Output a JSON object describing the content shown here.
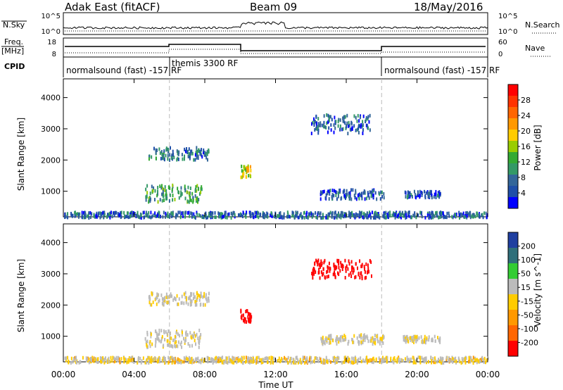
{
  "header": {
    "station": "Adak East (fitACF)",
    "beam": "Beam 09",
    "date": "18/May/2016"
  },
  "time_axis": {
    "ticks": [
      "00:00",
      "04:00",
      "08:00",
      "12:00",
      "16:00",
      "20:00",
      "00:00"
    ],
    "label": "Time UT",
    "range_hours": [
      0,
      24
    ]
  },
  "noise_panel": {
    "left_label": "N.Sky",
    "right_label": "N.Search",
    "left_ticks": [
      "10^5",
      "10^0"
    ],
    "right_ticks": [
      "10^5",
      "10^0"
    ]
  },
  "freq_panel": {
    "left_label_line1": "Freq.",
    "left_label_line2": "[MHz]",
    "right_label": "Nave",
    "left_ticks": [
      "18",
      "8"
    ],
    "right_ticks": [
      "60",
      "0"
    ]
  },
  "cpid_panel": {
    "label": "CPID",
    "segments": [
      {
        "text": "normalsound (fast) -157 RF",
        "start_hour": 0
      },
      {
        "text": "themis 3300 RF",
        "start_hour": 6
      },
      {
        "text": "normalsound (fast) -157 RF",
        "start_hour": 18
      }
    ],
    "mode_change_hours": [
      6,
      18
    ]
  },
  "power_colorbar": {
    "label": "Power [dB]",
    "ticks": [
      "28",
      "24",
      "20",
      "16",
      "12",
      "8",
      "4"
    ],
    "colors": [
      "#ff0000",
      "#ff3300",
      "#ff6600",
      "#ff9900",
      "#ffcc00",
      "#99cc00",
      "#33aa33",
      "#339966",
      "#336699",
      "#1f4fa8",
      "#0000ff"
    ]
  },
  "velocity_colorbar": {
    "label": "Velocity [m s^-1]",
    "ticks": [
      "200",
      "100",
      "50",
      "15",
      "-15",
      "-50",
      "-100",
      "-200"
    ],
    "colors": [
      "#1f3fa0",
      "#2f6f7a",
      "#33cc33",
      "#bbbbbb",
      "#ffcc00",
      "#ff9900",
      "#ff6600",
      "#ff0000"
    ]
  },
  "chart_data": [
    {
      "type": "scatter",
      "title": "",
      "xlabel": "Time UT",
      "ylabel": "Slant Range [km]",
      "xlim": [
        0,
        24
      ],
      "ylim": [
        180,
        4600
      ],
      "yticks": [
        "1000",
        "2000",
        "3000",
        "4000"
      ],
      "colorbar": "Power [dB]",
      "clusters": [
        {
          "x": [
            4.8,
            8.2
          ],
          "y": [
            2050,
            2450
          ],
          "value": 6
        },
        {
          "x": [
            4.6,
            7.8
          ],
          "y": [
            700,
            1250
          ],
          "value": 10
        },
        {
          "x": [
            10.0,
            10.6
          ],
          "y": [
            1500,
            1900
          ],
          "value": 18
        },
        {
          "x": [
            14.0,
            17.4
          ],
          "y": [
            2900,
            3500
          ],
          "value": 5
        },
        {
          "x": [
            14.5,
            18.1
          ],
          "y": [
            800,
            1100
          ],
          "value": 4
        },
        {
          "x": [
            19.2,
            21.3
          ],
          "y": [
            850,
            1050
          ],
          "value": 4
        },
        {
          "x": [
            0,
            24
          ],
          "y": [
            200,
            380
          ],
          "value": 5
        }
      ]
    },
    {
      "type": "scatter",
      "title": "",
      "xlabel": "Time UT",
      "ylabel": "Slant Range [km]",
      "xlim": [
        0,
        24
      ],
      "ylim": [
        180,
        4600
      ],
      "yticks": [
        "1000",
        "2000",
        "3000",
        "4000"
      ],
      "colorbar": "Velocity [m s^-1]",
      "clusters": [
        {
          "x": [
            4.8,
            8.2
          ],
          "y": [
            2050,
            2450
          ],
          "value": 0
        },
        {
          "x": [
            4.6,
            7.8
          ],
          "y": [
            700,
            1250
          ],
          "value": 0
        },
        {
          "x": [
            10.0,
            10.6
          ],
          "y": [
            1500,
            1900
          ],
          "value": -200
        },
        {
          "x": [
            14.0,
            17.4
          ],
          "y": [
            2900,
            3500
          ],
          "value": -200
        },
        {
          "x": [
            14.5,
            18.1
          ],
          "y": [
            800,
            1100
          ],
          "value": 0
        },
        {
          "x": [
            19.2,
            21.3
          ],
          "y": [
            850,
            1050
          ],
          "value": 0
        },
        {
          "x": [
            0,
            24
          ],
          "y": [
            200,
            380
          ],
          "value": -15
        }
      ]
    }
  ]
}
